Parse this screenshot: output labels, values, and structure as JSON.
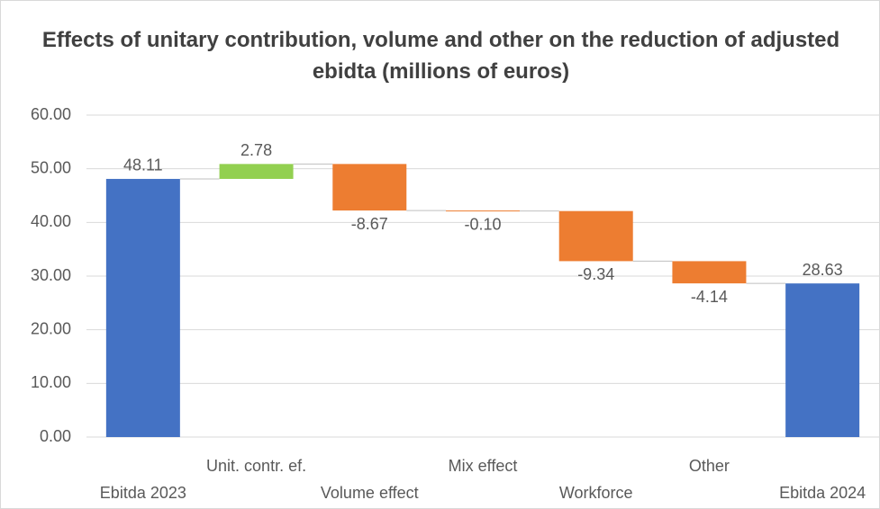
{
  "chart_data": {
    "type": "waterfall",
    "title": "Effects of unitary contribution, volume and other on the reduction of adjusted ebidta (millions of euros)",
    "categories": [
      "Ebitda 2023",
      "Unit. contr. ef.",
      "Volume effect",
      "Mix effect",
      "Workforce",
      "Other",
      "Ebitda 2024"
    ],
    "values": [
      48.11,
      2.78,
      -8.67,
      -0.1,
      -9.34,
      -4.14,
      28.63
    ],
    "value_labels": [
      "48.11",
      "2.78",
      "-8.67",
      "-0.10",
      "-9.34",
      "-4.14",
      "28.63"
    ],
    "colors": [
      "#4472c4",
      "#92d050",
      "#ed7d31",
      "#ed7d31",
      "#ed7d31",
      "#ed7d31",
      "#4472c4"
    ],
    "ylim": [
      0,
      60
    ],
    "yticks": [
      {
        "value": 0,
        "label": "0.00"
      },
      {
        "value": 10,
        "label": "10.00"
      },
      {
        "value": 20,
        "label": "20.00"
      },
      {
        "value": 30,
        "label": "30.00"
      },
      {
        "value": 40,
        "label": "40.00"
      },
      {
        "value": 50,
        "label": "50.00"
      },
      {
        "value": 60,
        "label": "60.00"
      }
    ],
    "grid": true
  }
}
